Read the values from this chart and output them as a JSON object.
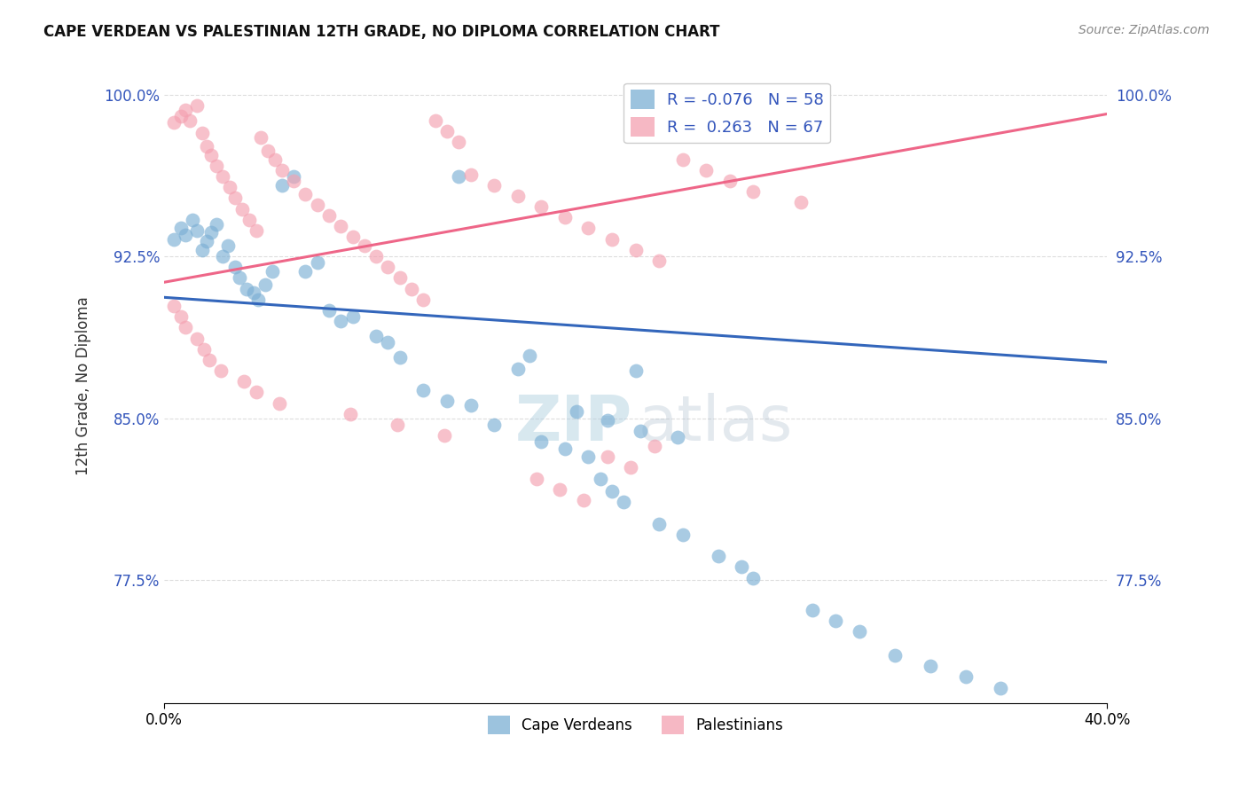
{
  "title": "CAPE VERDEAN VS PALESTINIAN 12TH GRADE, NO DIPLOMA CORRELATION CHART",
  "source": "Source: ZipAtlas.com",
  "ylabel": "12th Grade, No Diploma",
  "xmin": 0.0,
  "xmax": 0.4,
  "ymin": 0.718,
  "ymax": 1.012,
  "yticks": [
    0.775,
    0.85,
    0.925,
    1.0
  ],
  "ytick_labels": [
    "77.5%",
    "85.0%",
    "92.5%",
    "100.0%"
  ],
  "xtick_positions": [
    0.0,
    0.4
  ],
  "xtick_labels": [
    "0.0%",
    "40.0%"
  ],
  "legend_R_blue": "-0.076",
  "legend_N_blue": "58",
  "legend_R_pink": "0.263",
  "legend_N_pink": "67",
  "color_blue": "#7BAFD4",
  "color_pink": "#F4A0B0",
  "blue_trend_x": [
    0.0,
    0.4
  ],
  "blue_trend_y": [
    0.906,
    0.876
  ],
  "pink_trend_x": [
    0.0,
    0.4
  ],
  "pink_trend_y": [
    0.913,
    0.991
  ],
  "cape_verdean_x": [
    0.004,
    0.007,
    0.009,
    0.012,
    0.014,
    0.016,
    0.018,
    0.02,
    0.022,
    0.025,
    0.027,
    0.03,
    0.032,
    0.035,
    0.038,
    0.04,
    0.043,
    0.046,
    0.05,
    0.055,
    0.06,
    0.065,
    0.07,
    0.075,
    0.08,
    0.09,
    0.095,
    0.1,
    0.11,
    0.12,
    0.125,
    0.13,
    0.14,
    0.15,
    0.155,
    0.16,
    0.17,
    0.18,
    0.185,
    0.19,
    0.195,
    0.2,
    0.21,
    0.22,
    0.235,
    0.245,
    0.25,
    0.275,
    0.285,
    0.295,
    0.31,
    0.325,
    0.34,
    0.355,
    0.175,
    0.188,
    0.202,
    0.218
  ],
  "cape_verdean_y": [
    0.933,
    0.938,
    0.935,
    0.942,
    0.937,
    0.928,
    0.932,
    0.936,
    0.94,
    0.925,
    0.93,
    0.92,
    0.915,
    0.91,
    0.908,
    0.905,
    0.912,
    0.918,
    0.958,
    0.962,
    0.918,
    0.922,
    0.9,
    0.895,
    0.897,
    0.888,
    0.885,
    0.878,
    0.863,
    0.858,
    0.962,
    0.856,
    0.847,
    0.873,
    0.879,
    0.839,
    0.836,
    0.832,
    0.822,
    0.816,
    0.811,
    0.872,
    0.801,
    0.796,
    0.786,
    0.781,
    0.776,
    0.761,
    0.756,
    0.751,
    0.74,
    0.735,
    0.73,
    0.725,
    0.853,
    0.849,
    0.844,
    0.841
  ],
  "palestinian_x": [
    0.004,
    0.007,
    0.009,
    0.011,
    0.014,
    0.016,
    0.018,
    0.02,
    0.022,
    0.025,
    0.028,
    0.03,
    0.033,
    0.036,
    0.039,
    0.041,
    0.044,
    0.047,
    0.05,
    0.055,
    0.06,
    0.065,
    0.07,
    0.075,
    0.08,
    0.085,
    0.09,
    0.095,
    0.1,
    0.105,
    0.11,
    0.115,
    0.12,
    0.125,
    0.13,
    0.14,
    0.15,
    0.16,
    0.17,
    0.18,
    0.19,
    0.2,
    0.21,
    0.22,
    0.23,
    0.24,
    0.25,
    0.27,
    0.158,
    0.168,
    0.178,
    0.188,
    0.198,
    0.208,
    0.004,
    0.007,
    0.009,
    0.014,
    0.017,
    0.019,
    0.024,
    0.034,
    0.039,
    0.049,
    0.079,
    0.099,
    0.119
  ],
  "palestinian_y": [
    0.987,
    0.99,
    0.993,
    0.988,
    0.995,
    0.982,
    0.976,
    0.972,
    0.967,
    0.962,
    0.957,
    0.952,
    0.947,
    0.942,
    0.937,
    0.98,
    0.974,
    0.97,
    0.965,
    0.96,
    0.954,
    0.949,
    0.944,
    0.939,
    0.934,
    0.93,
    0.925,
    0.92,
    0.915,
    0.91,
    0.905,
    0.988,
    0.983,
    0.978,
    0.963,
    0.958,
    0.953,
    0.948,
    0.943,
    0.938,
    0.933,
    0.928,
    0.923,
    0.97,
    0.965,
    0.96,
    0.955,
    0.95,
    0.822,
    0.817,
    0.812,
    0.832,
    0.827,
    0.837,
    0.902,
    0.897,
    0.892,
    0.887,
    0.882,
    0.877,
    0.872,
    0.867,
    0.862,
    0.857,
    0.852,
    0.847,
    0.842
  ]
}
